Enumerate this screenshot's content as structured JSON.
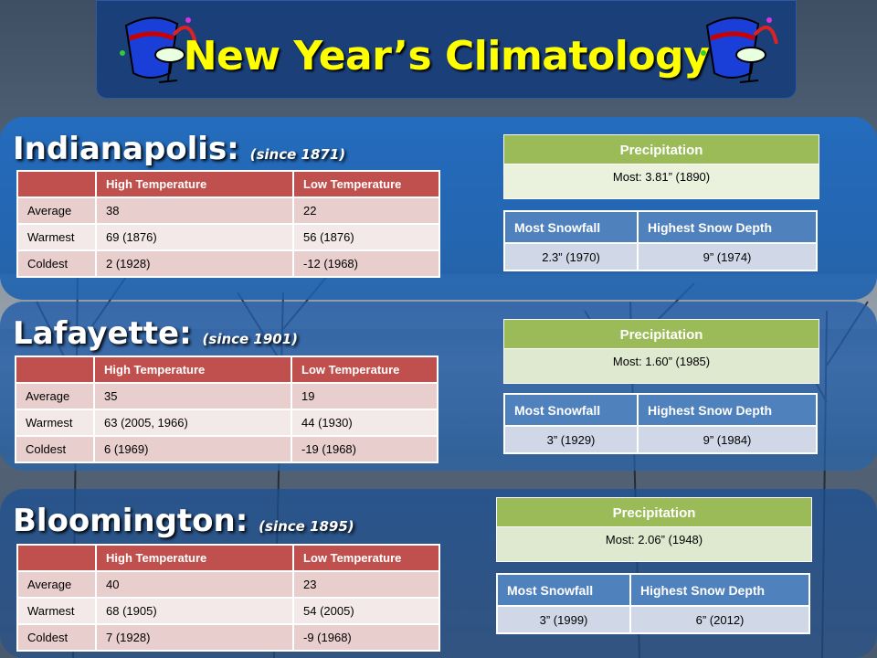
{
  "title": "New Year’s Climatology",
  "icons": {
    "left": "party-hat-glass-icon",
    "right": "party-hat-glass-icon"
  },
  "colors": {
    "title_bg": "#1b3f79",
    "title_text": "#ffff00",
    "temp_header": "#c0504d",
    "precip_header": "#9bbb59",
    "snow_header": "#4f81bd"
  },
  "stations": [
    {
      "name": "Indianapolis:",
      "since": "(since 1871)",
      "temp_headers": [
        "",
        "High Temperature",
        "Low Temperature"
      ],
      "rows": [
        {
          "label": "Average",
          "high": "38",
          "low": "22"
        },
        {
          "label": "Warmest",
          "high": "69 (1876)",
          "low": "56 (1876)"
        },
        {
          "label": "Coldest",
          "high": "2 (1928)",
          "low": "-12 (1968)"
        }
      ],
      "precip_label": "Precipitation",
      "precip_value": "Most: 3.81”  (1890)",
      "snow_headers": [
        "Most Snowfall",
        "Highest Snow Depth"
      ],
      "snowfall": "2.3” (1970)",
      "snow_depth": "9” (1974)"
    },
    {
      "name": "Lafayette:",
      "since": "(since 1901)",
      "temp_headers": [
        "",
        "High Temperature",
        "Low Temperature"
      ],
      "rows": [
        {
          "label": "Average",
          "high": "35",
          "low": "19"
        },
        {
          "label": "Warmest",
          "high": "63 (2005, 1966)",
          "low": "44 (1930)"
        },
        {
          "label": "Coldest",
          "high": "6 (1969)",
          "low": "-19 (1968)"
        }
      ],
      "precip_label": "Precipitation",
      "precip_value": "Most: 1.60” (1985)",
      "snow_headers": [
        "Most Snowfall",
        "Highest Snow Depth"
      ],
      "snowfall": "3” (1929)",
      "snow_depth": "9” (1984)"
    },
    {
      "name": "Bloomington:",
      "since": "(since 1895)",
      "temp_headers": [
        "",
        "High Temperature",
        "Low Temperature"
      ],
      "rows": [
        {
          "label": "Average",
          "high": "40",
          "low": "23"
        },
        {
          "label": "Warmest",
          "high": "68 (1905)",
          "low": "54 (2005)"
        },
        {
          "label": "Coldest",
          "high": "7 (1928)",
          "low": "-9 (1968)"
        }
      ],
      "precip_label": "Precipitation",
      "precip_value": "Most: 2.06” (1948)",
      "snow_headers": [
        "Most Snowfall",
        "Highest Snow Depth"
      ],
      "snowfall": "3” (1999)",
      "snow_depth": "6” (2012)"
    }
  ]
}
